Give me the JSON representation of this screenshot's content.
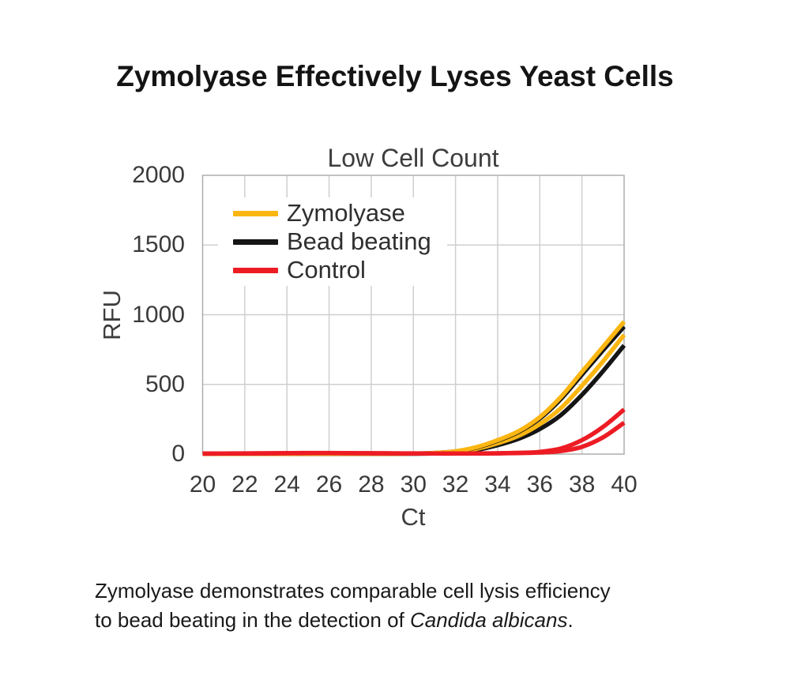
{
  "header": {
    "title": "Zymolyase Effectively Lyses Yeast Cells"
  },
  "chart_data": {
    "type": "line",
    "title": "Low Cell Count",
    "xlabel": "Ct",
    "ylabel": "RFU",
    "xlim": [
      20,
      40
    ],
    "ylim": [
      0,
      2000
    ],
    "x_ticks": [
      20,
      22,
      24,
      26,
      28,
      30,
      32,
      34,
      36,
      38,
      40
    ],
    "y_ticks": [
      0,
      500,
      1000,
      1500,
      2000
    ],
    "grid": true,
    "legend_position": "upper left inside plot",
    "x": [
      20,
      21,
      22,
      23,
      24,
      25,
      26,
      27,
      28,
      29,
      30,
      31,
      32,
      33,
      34,
      35,
      36,
      37,
      38,
      39,
      40
    ],
    "series": [
      {
        "name": "Bead beating",
        "replicate": 2,
        "color": "#151515",
        "values": [
          2,
          2,
          2,
          2,
          2,
          2,
          3,
          3,
          3,
          3,
          3,
          5,
          12,
          30,
          64,
          110,
          180,
          280,
          425,
          595,
          780
        ]
      },
      {
        "name": "Zymolyase",
        "replicate": 2,
        "color": "#FBB612",
        "values": [
          2,
          2,
          2,
          2,
          2,
          2,
          3,
          3,
          3,
          3,
          4,
          6,
          15,
          38,
          78,
          132,
          215,
          330,
          490,
          665,
          855
        ]
      },
      {
        "name": "Bead beating",
        "replicate": 1,
        "color": "#151515",
        "values": [
          2,
          2,
          2,
          2,
          2,
          3,
          3,
          3,
          3,
          3,
          4,
          8,
          19,
          47,
          96,
          160,
          255,
          395,
          570,
          745,
          915
        ]
      },
      {
        "name": "Zymolyase",
        "replicate": 1,
        "color": "#FBB612",
        "values": [
          2,
          2,
          2,
          2,
          2,
          3,
          3,
          3,
          3,
          3,
          4,
          8,
          20,
          50,
          100,
          165,
          265,
          410,
          590,
          770,
          950
        ]
      },
      {
        "name": "Control",
        "replicate": 1,
        "color": "#ED1C24",
        "values": [
          4,
          4,
          5,
          6,
          7,
          8,
          8,
          7,
          6,
          5,
          5,
          4,
          4,
          5,
          6,
          9,
          16,
          40,
          100,
          195,
          320
        ]
      },
      {
        "name": "Control",
        "replicate": 2,
        "color": "#ED1C24",
        "values": [
          3,
          4,
          4,
          5,
          6,
          7,
          7,
          6,
          6,
          5,
          4,
          4,
          4,
          4,
          5,
          7,
          11,
          22,
          52,
          120,
          225
        ]
      }
    ],
    "legend": [
      {
        "label": "Zymolyase",
        "color": "#FBB612"
      },
      {
        "label": "Bead beating",
        "color": "#151515"
      },
      {
        "label": "Control",
        "color": "#ED1C24"
      }
    ]
  },
  "caption": {
    "line1": "Zymolyase demonstrates comparable cell lysis efficiency",
    "line2_prefix": "to bead beating in the detection of ",
    "line2_italic": "Candida albicans",
    "line2_suffix": "."
  },
  "colors": {
    "background": "#FFFFFF",
    "grid": "#CFCFCF",
    "axis_border": "#ADADAD",
    "title_text": "#141414",
    "chart_text": "#3D3D3D"
  }
}
